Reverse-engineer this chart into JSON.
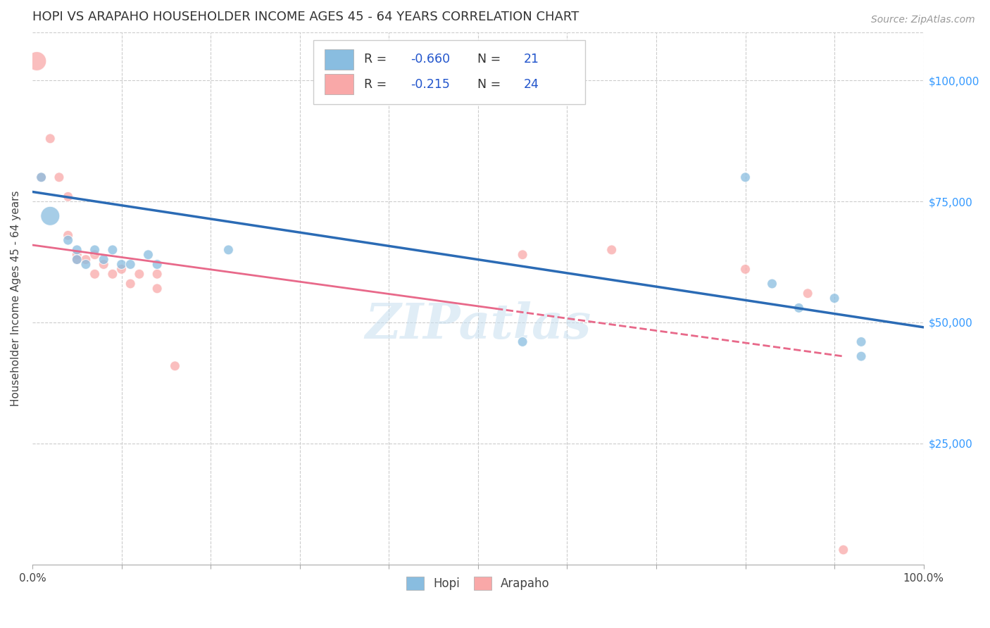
{
  "title": "HOPI VS ARAPAHO HOUSEHOLDER INCOME AGES 45 - 64 YEARS CORRELATION CHART",
  "source": "Source: ZipAtlas.com",
  "ylabel": "Householder Income Ages 45 - 64 years",
  "xlim": [
    0.0,
    1.0
  ],
  "ylim": [
    0,
    110000
  ],
  "yticks_right": [
    25000,
    50000,
    75000,
    100000
  ],
  "ytick_labels_right": [
    "$25,000",
    "$50,000",
    "$75,000",
    "$100,000"
  ],
  "yticks_left": [
    0,
    25000,
    50000,
    75000,
    100000
  ],
  "hopi_color": "#89bde0",
  "arapaho_color": "#f9a8a8",
  "hopi_line_color": "#2b6bb5",
  "arapaho_line_color": "#e8698a",
  "watermark": "ZIPatlas",
  "grid_color": "#cccccc",
  "background_color": "#ffffff",
  "title_fontsize": 13,
  "label_fontsize": 11,
  "tick_fontsize": 11,
  "source_fontsize": 10,
  "hopi_x": [
    0.01,
    0.02,
    0.04,
    0.05,
    0.05,
    0.06,
    0.07,
    0.08,
    0.09,
    0.1,
    0.11,
    0.13,
    0.14,
    0.22,
    0.55,
    0.8,
    0.83,
    0.86,
    0.9,
    0.93,
    0.93
  ],
  "hopi_y": [
    80000,
    72000,
    67000,
    65000,
    63000,
    62000,
    65000,
    63000,
    65000,
    62000,
    62000,
    64000,
    62000,
    65000,
    46000,
    80000,
    58000,
    53000,
    55000,
    46000,
    43000
  ],
  "hopi_size": [
    100,
    380,
    100,
    100,
    100,
    100,
    100,
    100,
    100,
    100,
    100,
    100,
    100,
    100,
    100,
    100,
    100,
    100,
    100,
    100,
    100
  ],
  "arapaho_x": [
    0.005,
    0.01,
    0.02,
    0.03,
    0.04,
    0.04,
    0.05,
    0.05,
    0.06,
    0.07,
    0.07,
    0.08,
    0.09,
    0.1,
    0.11,
    0.12,
    0.14,
    0.14,
    0.16,
    0.55,
    0.65,
    0.8,
    0.87,
    0.91
  ],
  "arapaho_y": [
    104000,
    80000,
    88000,
    80000,
    76000,
    68000,
    64000,
    63000,
    63000,
    64000,
    60000,
    62000,
    60000,
    61000,
    58000,
    60000,
    60000,
    57000,
    41000,
    64000,
    65000,
    61000,
    56000,
    3000
  ],
  "arapaho_size": [
    380,
    100,
    100,
    100,
    100,
    100,
    100,
    100,
    100,
    100,
    100,
    100,
    100,
    100,
    100,
    100,
    100,
    100,
    100,
    100,
    100,
    100,
    100,
    100
  ],
  "legend_R_hopi": "-0.660",
  "legend_N_hopi": "21",
  "legend_R_arapaho": "-0.215",
  "legend_N_arapaho": "24",
  "hopi_trendline_x": [
    0.0,
    1.0
  ],
  "hopi_trendline_y": [
    77000,
    49000
  ],
  "arapaho_trendline_x": [
    0.0,
    0.91
  ],
  "arapaho_trendline_y": [
    66000,
    43000
  ],
  "bottom_ticks_x": [
    0.0,
    0.1,
    0.2,
    0.3,
    0.4,
    0.5,
    0.6,
    0.7,
    0.8,
    0.9,
    1.0
  ]
}
